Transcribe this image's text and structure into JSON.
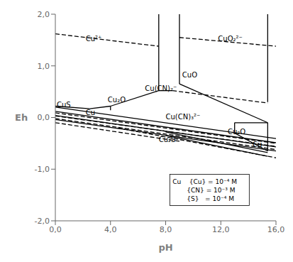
{
  "chart_data": {
    "type": "line",
    "xlabel": "pH",
    "ylabel": "Eh",
    "xlim": [
      0,
      16
    ],
    "ylim": [
      -2.0,
      2.0
    ],
    "xticks": [
      {
        "value": 0.0,
        "label": "0,0"
      },
      {
        "value": 4.0,
        "label": "4,0"
      },
      {
        "value": 8.0,
        "label": "8,0"
      },
      {
        "value": 12.0,
        "label": "12,0"
      },
      {
        "value": 16.0,
        "label": "16,0"
      }
    ],
    "yticks": [
      {
        "value": 2.0,
        "label": "2,0"
      },
      {
        "value": 1.0,
        "label": "1,0"
      },
      {
        "value": 0.0,
        "label": "0,0"
      },
      {
        "value": -1.0,
        "label": "-1,0"
      },
      {
        "value": -2.0,
        "label": "-2,0"
      }
    ],
    "grid": false,
    "series": [
      {
        "x": [
          0,
          7.5
        ],
        "values": [
          1.62,
          1.38
        ],
        "line_style": "dashed",
        "color": "#000000"
      },
      {
        "x": [
          9.0,
          16.0
        ],
        "values": [
          1.55,
          1.38
        ],
        "line_style": "dashed",
        "color": "#000000"
      },
      {
        "x": [
          8.5,
          15.4
        ],
        "values": [
          0.52,
          0.28
        ],
        "line_style": "dashed",
        "color": "#000000"
      },
      {
        "x": [
          0,
          16
        ],
        "values": [
          0.09,
          -0.5
        ],
        "line_style": "dashed",
        "color": "#000000"
      },
      {
        "x": [
          0,
          16
        ],
        "values": [
          -0.02,
          -0.62
        ],
        "line_style": "dashed",
        "color": "#000000"
      },
      {
        "x": [
          4.5,
          16
        ],
        "values": [
          -0.2,
          -0.78
        ],
        "line_style": "dashed",
        "color": "#000000"
      },
      {
        "x": [
          0,
          16
        ],
        "values": [
          0.03,
          -0.56
        ],
        "line_style": "dashed",
        "color": "#000000"
      },
      {
        "x": [
          0,
          9
        ],
        "values": [
          -0.1,
          -0.46
        ],
        "line_style": "dashed",
        "color": "#000000"
      },
      {
        "x": [
          7.5,
          7.5
        ],
        "values": [
          2.0,
          0.52
        ],
        "line_style": "solid",
        "color": "#000000"
      },
      {
        "x": [
          9.0,
          9.0
        ],
        "values": [
          2.0,
          0.65
        ],
        "line_style": "solid",
        "color": "#000000"
      },
      {
        "x": [
          15.4,
          15.4
        ],
        "values": [
          2.0,
          0.3
        ],
        "line_style": "solid",
        "color": "#000000"
      },
      {
        "x": [
          15.4,
          15.4
        ],
        "values": [
          -0.1,
          -0.65
        ],
        "line_style": "solid",
        "color": "#000000"
      },
      {
        "x": [
          7.5,
          8.5
        ],
        "values": [
          0.52,
          0.52
        ],
        "line_style": "solid",
        "color": "#000000"
      },
      {
        "x": [
          9.0,
          15.4
        ],
        "values": [
          0.65,
          -0.1
        ],
        "line_style": "solid",
        "color": "#000000"
      },
      {
        "x": [
          0,
          2.5
        ],
        "values": [
          0.22,
          0.17
        ],
        "line_style": "solid",
        "color": "#000000"
      },
      {
        "x": [
          2.5,
          4.0
        ],
        "values": [
          0.17,
          0.22
        ],
        "line_style": "solid",
        "color": "#000000"
      },
      {
        "x": [
          4.0,
          7.5
        ],
        "values": [
          0.22,
          0.52
        ],
        "line_style": "solid",
        "color": "#000000"
      },
      {
        "x": [
          4.0,
          4.0
        ],
        "values": [
          0.14,
          0.22
        ],
        "line_style": "solid",
        "color": "#000000"
      },
      {
        "x": [
          0,
          16
        ],
        "values": [
          0.2,
          -0.408
        ],
        "line_style": "solid",
        "color": "#000000"
      },
      {
        "x": [
          0,
          16
        ],
        "values": [
          0.12,
          -0.488
        ],
        "line_style": "solid",
        "color": "#000000"
      },
      {
        "x": [
          0,
          16
        ],
        "values": [
          0.04,
          -0.568
        ],
        "line_style": "solid",
        "color": "#000000"
      },
      {
        "x": [
          0,
          16
        ],
        "values": [
          -0.04,
          -0.648
        ],
        "line_style": "solid",
        "color": "#000000"
      },
      {
        "x": [
          8.0,
          15.4
        ],
        "values": [
          -0.28,
          -0.68
        ],
        "line_style": "solid",
        "color": "#000000"
      },
      {
        "x": [
          8.0,
          15.4
        ],
        "values": [
          -0.35,
          -0.75
        ],
        "line_style": "solid",
        "color": "#000000"
      },
      {
        "x": [
          13.0,
          15.4
        ],
        "values": [
          -0.3,
          -0.65
        ],
        "line_style": "solid",
        "color": "#000000"
      },
      {
        "x": [
          13.0,
          15.4
        ],
        "values": [
          -0.1,
          -0.1
        ],
        "line_style": "solid",
        "color": "#000000"
      },
      {
        "x": [
          13.0,
          13.0
        ],
        "values": [
          -0.1,
          -0.3
        ],
        "line_style": "solid",
        "color": "#000000"
      }
    ],
    "annotations": [
      {
        "text": "Cu²⁺",
        "x": 2.2,
        "y": 1.52
      },
      {
        "text": "CuS",
        "x": 0.1,
        "y": 0.25
      },
      {
        "text": "Cu",
        "x": 2.2,
        "y": 0.1
      },
      {
        "text": "Cu₂O",
        "x": 3.8,
        "y": 0.35
      },
      {
        "text": "Cu(CN)₂⁻",
        "x": 6.5,
        "y": 0.56
      },
      {
        "text": "CuO",
        "x": 9.2,
        "y": 0.82
      },
      {
        "text": "CuO₂²⁻",
        "x": 11.8,
        "y": 1.52
      },
      {
        "text": "Cu(CN)₃²⁻",
        "x": 8.0,
        "y": 0.02
      },
      {
        "text": "Cu₂S",
        "x": 7.5,
        "y": -0.42
      },
      {
        "text": "Cu₂O",
        "x": 12.5,
        "y": -0.28
      },
      {
        "text": "Cu",
        "x": 14.3,
        "y": -0.52
      }
    ],
    "note": {
      "lines": [
        "Cu    {Cu} = 10⁻⁴ M",
        "       {CN} = 10⁻³ M",
        "       {S}   = 10⁻⁴ M"
      ],
      "x": 8.3,
      "y": -1.1
    }
  }
}
